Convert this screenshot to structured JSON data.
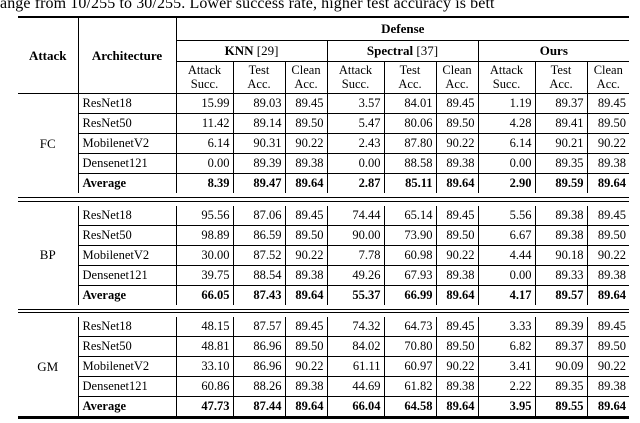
{
  "caption": "ange from 10/255 to 30/255. Lower success rate, higher test accuracy is bett",
  "table": {
    "header": {
      "attack_label": "Attack",
      "architecture_label": "Architecture",
      "defense_label": "Defense",
      "groups": [
        {
          "name": "KNN",
          "ref": "[29]"
        },
        {
          "name": "Spectral",
          "ref": "[37]"
        },
        {
          "name": "Ours",
          "ref": ""
        }
      ],
      "metric_columns": [
        {
          "line1": "Attack",
          "line2": "Succ."
        },
        {
          "line1": "Test",
          "line2": "Acc."
        },
        {
          "line1": "Clean",
          "line2": "Acc."
        }
      ]
    },
    "blocks": [
      {
        "attack": "FC",
        "rows": [
          {
            "architecture": "ResNet18",
            "bold": false,
            "values": [
              "15.99",
              "89.03",
              "89.45",
              "3.57",
              "84.01",
              "89.45",
              "1.19",
              "89.37",
              "89.45"
            ]
          },
          {
            "architecture": "ResNet50",
            "bold": false,
            "values": [
              "11.42",
              "89.14",
              "89.50",
              "5.47",
              "80.06",
              "89.50",
              "4.28",
              "89.41",
              "89.50"
            ]
          },
          {
            "architecture": "MobilenetV2",
            "bold": false,
            "values": [
              "6.14",
              "90.31",
              "90.22",
              "2.43",
              "87.80",
              "90.22",
              "6.14",
              "90.21",
              "90.22"
            ]
          },
          {
            "architecture": "Densenet121",
            "bold": false,
            "values": [
              "0.00",
              "89.39",
              "89.38",
              "0.00",
              "88.58",
              "89.38",
              "0.00",
              "89.35",
              "89.38"
            ]
          },
          {
            "architecture": "Average",
            "bold": true,
            "values": [
              "8.39",
              "89.47",
              "89.64",
              "2.87",
              "85.11",
              "89.64",
              "2.90",
              "89.59",
              "89.64"
            ]
          }
        ]
      },
      {
        "attack": "BP",
        "rows": [
          {
            "architecture": "ResNet18",
            "bold": false,
            "values": [
              "95.56",
              "87.06",
              "89.45",
              "74.44",
              "65.14",
              "89.45",
              "5.56",
              "89.38",
              "89.45"
            ]
          },
          {
            "architecture": "ResNet50",
            "bold": false,
            "values": [
              "98.89",
              "86.59",
              "89.50",
              "90.00",
              "73.90",
              "89.50",
              "6.67",
              "89.38",
              "89.50"
            ]
          },
          {
            "architecture": "MobilenetV2",
            "bold": false,
            "values": [
              "30.00",
              "87.52",
              "90.22",
              "7.78",
              "60.98",
              "90.22",
              "4.44",
              "90.18",
              "90.22"
            ]
          },
          {
            "architecture": "Densenet121",
            "bold": false,
            "values": [
              "39.75",
              "88.54",
              "89.38",
              "49.26",
              "67.93",
              "89.38",
              "0.00",
              "89.33",
              "89.38"
            ]
          },
          {
            "architecture": "Average",
            "bold": true,
            "values": [
              "66.05",
              "87.43",
              "89.64",
              "55.37",
              "66.99",
              "89.64",
              "4.17",
              "89.57",
              "89.64"
            ]
          }
        ]
      },
      {
        "attack": "GM",
        "rows": [
          {
            "architecture": "ResNet18",
            "bold": false,
            "values": [
              "48.15",
              "87.57",
              "89.45",
              "74.32",
              "64.73",
              "89.45",
              "3.33",
              "89.39",
              "89.45"
            ]
          },
          {
            "architecture": "ResNet50",
            "bold": false,
            "values": [
              "48.81",
              "86.96",
              "89.50",
              "84.02",
              "70.80",
              "89.50",
              "6.82",
              "89.37",
              "89.50"
            ]
          },
          {
            "architecture": "MobilenetV2",
            "bold": false,
            "values": [
              "33.10",
              "86.96",
              "90.22",
              "61.11",
              "60.97",
              "90.22",
              "3.41",
              "90.09",
              "90.22"
            ]
          },
          {
            "architecture": "Densenet121",
            "bold": false,
            "values": [
              "60.86",
              "88.26",
              "89.38",
              "44.69",
              "61.82",
              "89.38",
              "2.22",
              "89.35",
              "89.38"
            ]
          },
          {
            "architecture": "Average",
            "bold": true,
            "values": [
              "47.73",
              "87.44",
              "89.64",
              "66.04",
              "64.58",
              "89.64",
              "3.95",
              "89.55",
              "89.64"
            ]
          }
        ]
      }
    ]
  }
}
